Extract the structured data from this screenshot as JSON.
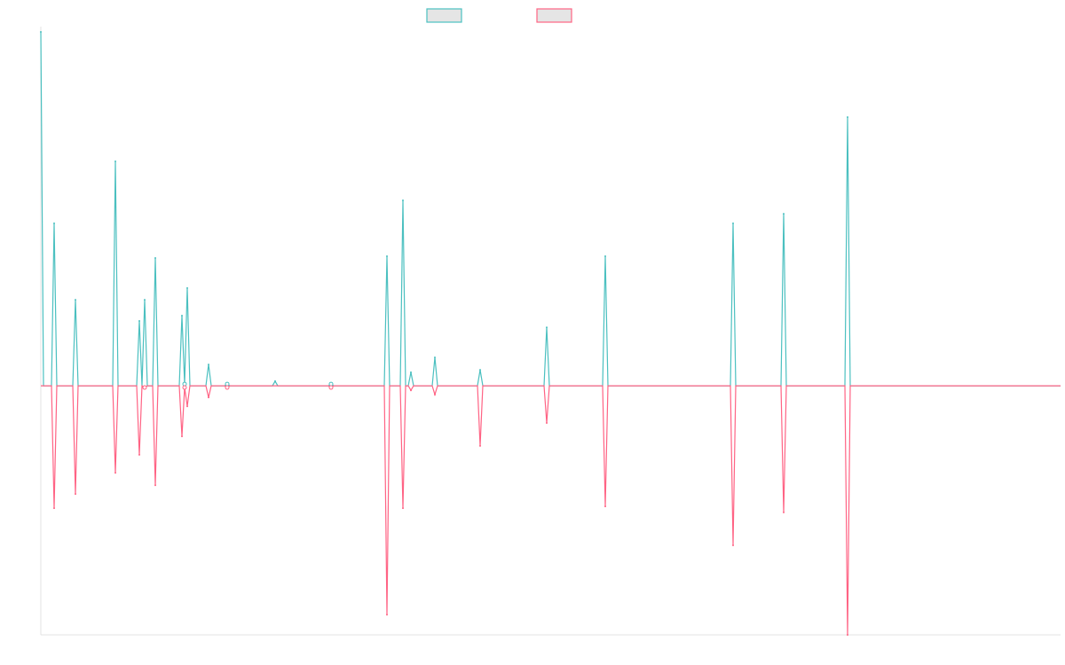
{
  "chart_data": {
    "type": "line",
    "title": "",
    "xlabel": "",
    "ylabel": "",
    "xlim": [
      0,
      383
    ],
    "ylim": [
      -70.4,
      100
    ],
    "grid": false,
    "legend": "top-center",
    "series": [
      {
        "color": "#4bc0c0",
        "fill": "#e5e5e5",
        "points": [
          [
            0,
            100
          ],
          [
            5,
            45.9
          ],
          [
            13,
            24.3
          ],
          [
            28,
            63.4
          ],
          [
            37,
            18.3
          ],
          [
            39,
            24.3
          ],
          [
            43,
            36.1
          ],
          [
            53,
            19.8
          ],
          [
            54,
            0.5
          ],
          [
            55,
            27.6
          ],
          [
            63,
            6
          ],
          [
            70,
            0.5
          ],
          [
            88,
            1.3
          ],
          [
            109,
            0.5
          ],
          [
            130,
            36.6
          ],
          [
            136,
            52.4
          ],
          [
            139,
            3.8
          ],
          [
            148,
            8
          ],
          [
            165,
            4.5
          ],
          [
            190,
            16.5
          ],
          [
            212,
            36.6
          ],
          [
            260,
            45.9
          ],
          [
            279,
            48.6
          ],
          [
            303,
            75.9
          ]
        ]
      },
      {
        "color": "#ff6384",
        "fill": "#e5e5e5",
        "points": [
          [
            5,
            -34.6
          ],
          [
            13,
            -30.6
          ],
          [
            28,
            -24.6
          ],
          [
            37,
            -19.5
          ],
          [
            39,
            -0.5
          ],
          [
            43,
            -28.1
          ],
          [
            53,
            -14.3
          ],
          [
            54,
            -0.5
          ],
          [
            55,
            -5.8
          ],
          [
            63,
            -3.3
          ],
          [
            70,
            -0.5
          ],
          [
            109,
            -0.5
          ],
          [
            130,
            -64.7
          ],
          [
            136,
            -34.6
          ],
          [
            139,
            -1.3
          ],
          [
            148,
            -2.5
          ],
          [
            165,
            -17
          ],
          [
            190,
            -10.5
          ],
          [
            212,
            -34.1
          ],
          [
            260,
            -45.1
          ],
          [
            279,
            -35.8
          ],
          [
            303,
            -70.4
          ]
        ]
      }
    ]
  }
}
